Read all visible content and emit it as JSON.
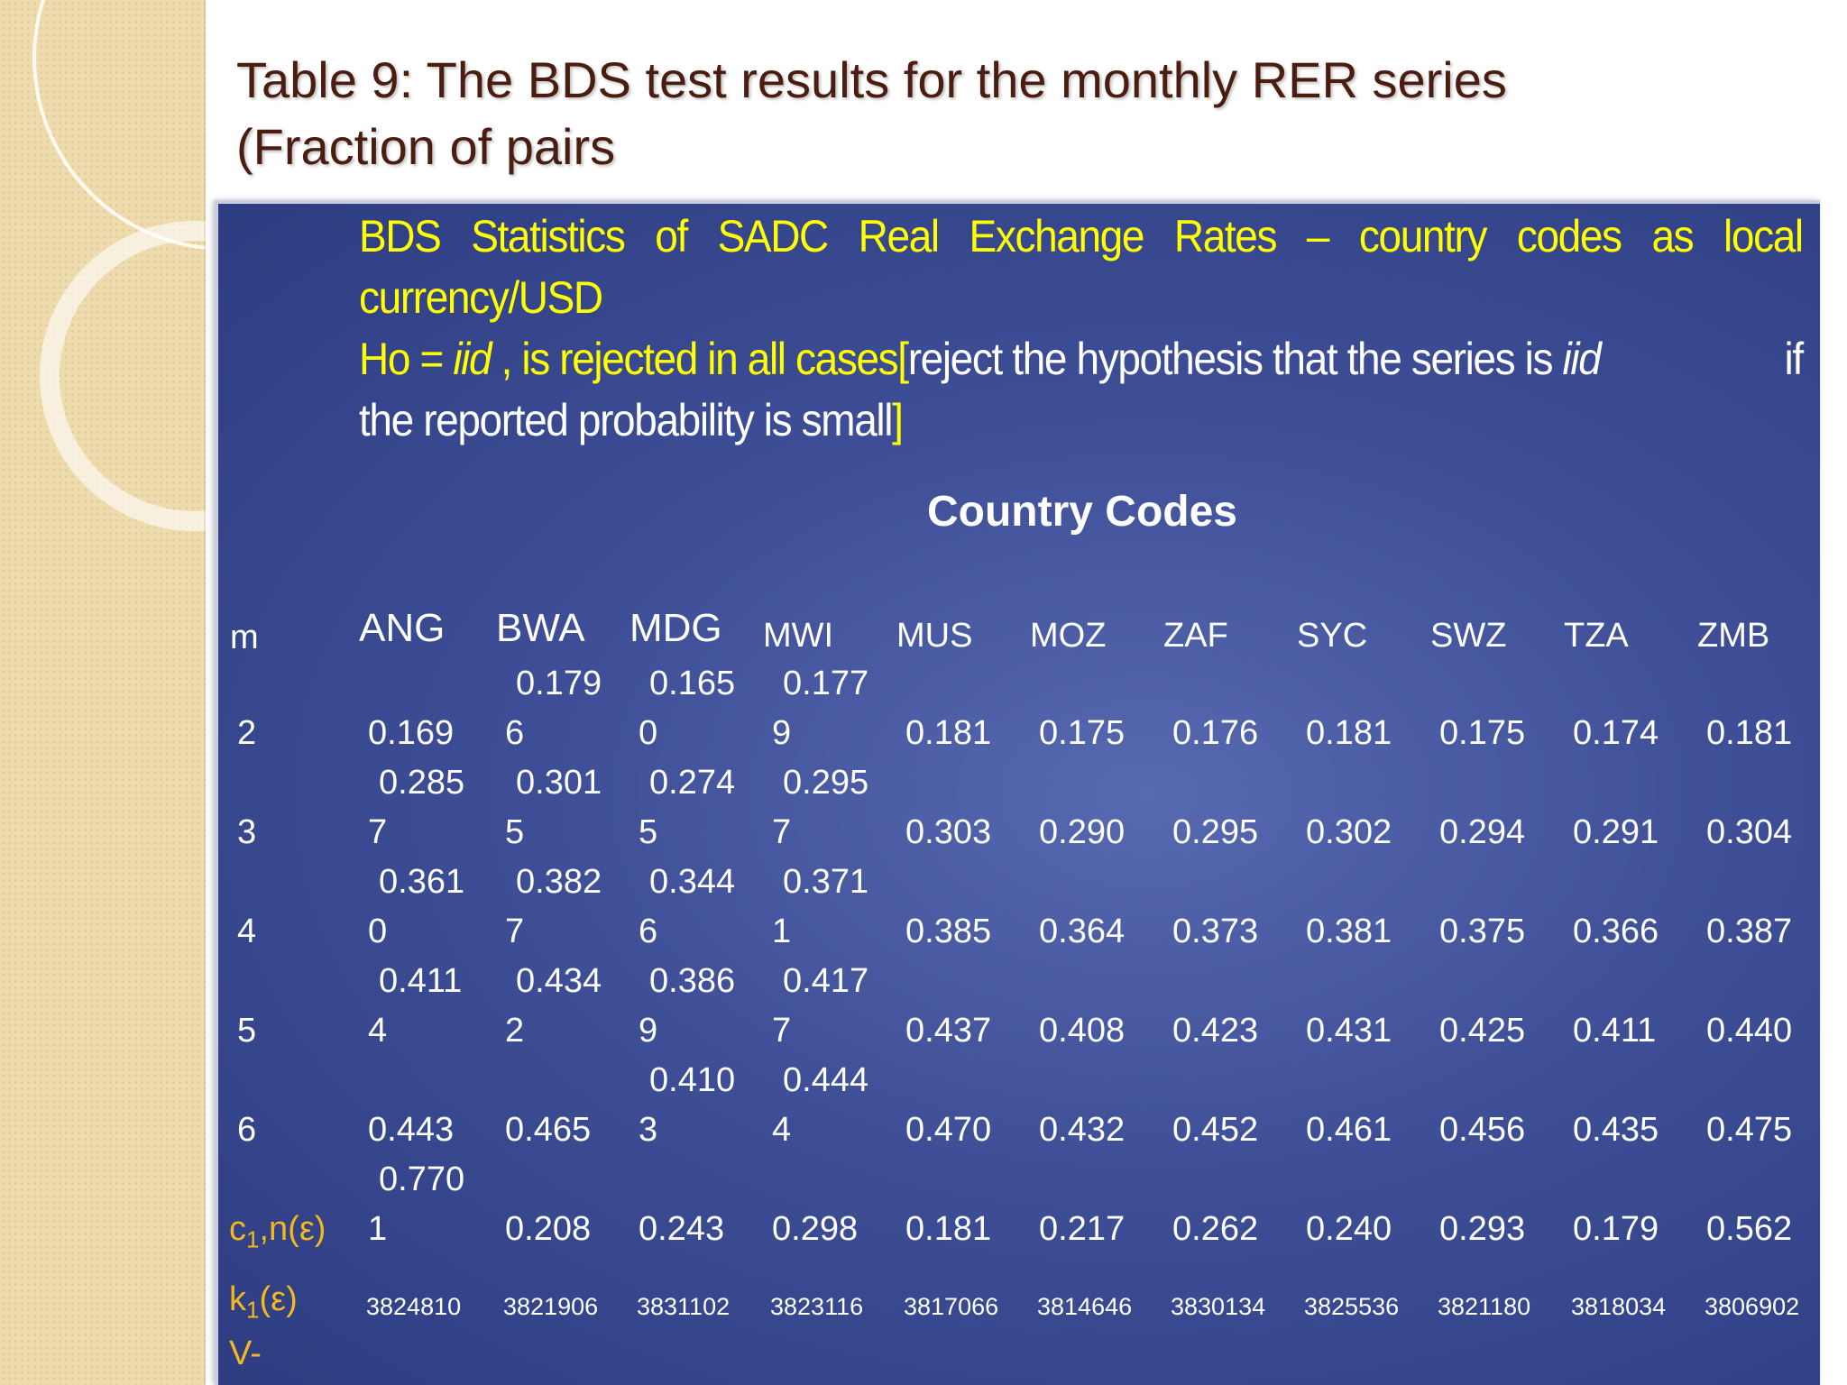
{
  "title": {
    "line1": "Table 9: The BDS test results for the monthly RER series",
    "line2": "(Fraction of pairs"
  },
  "intro": {
    "line1_words": [
      "BDS",
      "Statistics",
      "of",
      "SADC",
      "Real",
      "Exchange",
      "Rates",
      "–",
      "country",
      "codes",
      "as",
      "local"
    ],
    "line2": "currency/USD",
    "line3_yellow": "Ho = ",
    "line3_yellow_iid": "iid",
    "line3_yellow_rest": " , is rejected in all cases[",
    "line3_white": "reject the hypothesis that the series is ",
    "line3_white_iid": "iid",
    "line3_white_end": " if",
    "line4_white": "the reported probability is small",
    "line4_yellow": "]"
  },
  "table": {
    "heading": "Country Codes",
    "m_header": "m",
    "columns": [
      "ANG",
      "BWA",
      "MDG",
      "MWI",
      "MUS",
      "MOZ",
      "ZAF",
      "SYC",
      "SWZ",
      "TZA",
      "ZMB"
    ],
    "rows": [
      {
        "m": "2",
        "wrapped": [
          "",
          "0.179",
          "0.165",
          "0.177"
        ],
        "values": [
          "0.169",
          "6",
          "0",
          "9",
          "0.181",
          "0.175",
          "0.176",
          "0.181",
          "0.175",
          "0.174",
          "0.181"
        ]
      },
      {
        "m": "3",
        "wrapped": [
          "0.285",
          "0.301",
          "0.274",
          "0.295"
        ],
        "values": [
          "7",
          "5",
          "5",
          "7",
          "0.303",
          "0.290",
          "0.295",
          "0.302",
          "0.294",
          "0.291",
          "0.304"
        ]
      },
      {
        "m": "4",
        "wrapped": [
          "0.361",
          "0.382",
          "0.344",
          "0.371"
        ],
        "values": [
          "0",
          "7",
          "6",
          "1",
          "0.385",
          "0.364",
          "0.373",
          "0.381",
          "0.375",
          "0.366",
          "0.387"
        ]
      },
      {
        "m": "5",
        "wrapped": [
          "0.411",
          "0.434",
          "0.386",
          "0.417"
        ],
        "values": [
          "4",
          "2",
          "9",
          "7",
          "0.437",
          "0.408",
          "0.423",
          "0.431",
          "0.425",
          "0.411",
          "0.440"
        ]
      },
      {
        "m": "6",
        "wrapped": [
          "",
          "",
          "0.410",
          "0.444"
        ],
        "values": [
          "0.443",
          "0.465",
          "3",
          "4",
          "0.470",
          "0.432",
          "0.452",
          "0.461",
          "0.456",
          "0.435",
          "0.475"
        ]
      }
    ],
    "c_row": {
      "label_c": "c",
      "label_sub": "1",
      "label_rest": ",n(ε)",
      "wrapped": [
        "0.770",
        "",
        "",
        ""
      ],
      "values": [
        "1",
        "0.208",
        "0.243",
        "0.298",
        "0.181",
        "0.217",
        "0.262",
        "0.240",
        "0.293",
        "0.179",
        "0.562"
      ]
    },
    "k_row": {
      "label_k": "k",
      "label_sub": "1",
      "label_rest": "(ε)",
      "values": [
        "3824810",
        "3821906",
        "3831102",
        "3823116",
        "3817066",
        "3814646",
        "3830134",
        "3825536",
        "3821180",
        "3818034",
        "3806902"
      ]
    },
    "v_row": {
      "label": "V-"
    }
  }
}
